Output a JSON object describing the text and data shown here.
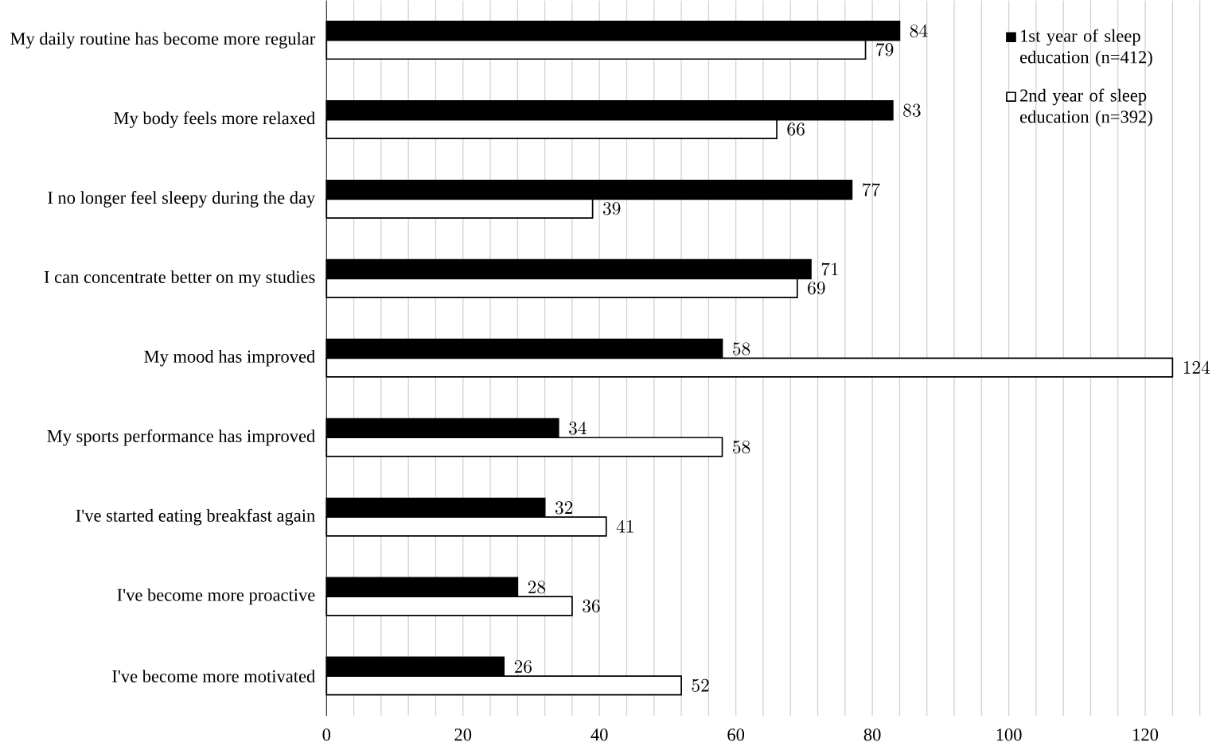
{
  "chart_data": {
    "type": "bar",
    "orientation": "horizontal",
    "categories": [
      "My daily routine has become more regular",
      "My body feels more relaxed",
      "I no longer feel sleepy during the day",
      "I can concentrate better on my studies",
      "My mood has improved",
      "My sports performance has improved",
      "I've started eating breakfast again",
      "I've become more proactive",
      "I've become more motivated"
    ],
    "series": [
      {
        "name": "1st year of sleep education (n=412)",
        "color": "#000000",
        "values": [
          84,
          83,
          77,
          71,
          58,
          34,
          32,
          28,
          26
        ]
      },
      {
        "name": "2nd year of sleep education (n=392)",
        "color": "#ffffff",
        "values": [
          79,
          66,
          39,
          69,
          124,
          58,
          41,
          36,
          52
        ]
      }
    ],
    "xlim": [
      0,
      128
    ],
    "xticks": [
      0,
      {
        "value": 4,
        "label": null
      },
      {
        "value": 8,
        "label": null
      },
      {
        "value": 12,
        "label": null
      },
      {
        "value": 16,
        "label": null
      },
      20,
      {
        "value": 24,
        "label": null
      },
      {
        "value": 28,
        "label": null
      },
      {
        "value": 32,
        "label": null
      },
      {
        "value": 36,
        "label": null
      },
      40,
      {
        "value": 44,
        "label": null
      },
      {
        "value": 48,
        "label": null
      },
      {
        "value": 52,
        "label": null
      },
      {
        "value": 56,
        "label": null
      },
      60,
      {
        "value": 64,
        "label": null
      },
      {
        "value": 68,
        "label": null
      },
      {
        "value": 72,
        "label": null
      },
      {
        "value": 76,
        "label": null
      },
      80,
      {
        "value": 84,
        "label": null
      },
      {
        "value": 88,
        "label": null
      },
      {
        "value": 92,
        "label": null
      },
      {
        "value": 96,
        "label": null
      },
      100,
      {
        "value": 104,
        "label": null
      },
      {
        "value": 108,
        "label": null
      },
      {
        "value": 112,
        "label": null
      },
      {
        "value": 116,
        "label": null
      },
      120,
      {
        "value": 124,
        "label": null
      },
      {
        "value": 128,
        "label": null
      }
    ],
    "grid": "x",
    "legend": "top right",
    "data_labels": true
  }
}
